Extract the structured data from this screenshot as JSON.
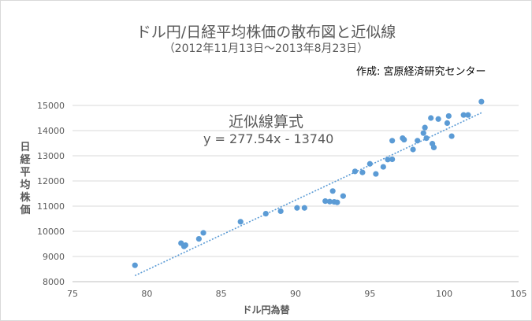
{
  "chart_data": {
    "type": "scatter",
    "title": "ドル円/日経平均株価の散布図と近似線",
    "subtitle": "（2012年11月13日〜2013年8月23日）",
    "author": "作成: 宮原経済研究センター",
    "annotation_title": "近似線算式",
    "annotation_equation": "y = 277.54x - 13740",
    "xlabel": "ドル円為替",
    "ylabel": "日経平均株価",
    "xlim": [
      75,
      105
    ],
    "ylim": [
      8000,
      15500
    ],
    "x_ticks": [
      "75",
      "80",
      "85",
      "90",
      "95",
      "100",
      "105"
    ],
    "y_ticks": [
      "8000",
      "9000",
      "10000",
      "11000",
      "12000",
      "13000",
      "14000",
      "15000"
    ],
    "grid": "horizontal",
    "trendline": {
      "slope": 277.54,
      "intercept": -13740,
      "x_range": [
        79.2,
        102.5
      ]
    },
    "marker_color": "#5b9bd5",
    "points": [
      [
        79.2,
        8650
      ],
      [
        82.3,
        9530
      ],
      [
        82.5,
        9400
      ],
      [
        82.6,
        9450
      ],
      [
        83.5,
        9700
      ],
      [
        83.8,
        9940
      ],
      [
        86.3,
        10380
      ],
      [
        88.0,
        10700
      ],
      [
        89.0,
        10800
      ],
      [
        90.1,
        10930
      ],
      [
        90.6,
        10930
      ],
      [
        92.0,
        11200
      ],
      [
        92.3,
        11180
      ],
      [
        92.5,
        11600
      ],
      [
        92.6,
        11170
      ],
      [
        92.8,
        11150
      ],
      [
        93.2,
        11400
      ],
      [
        94.0,
        12380
      ],
      [
        94.5,
        12340
      ],
      [
        95.0,
        12680
      ],
      [
        95.4,
        12280
      ],
      [
        95.9,
        12560
      ],
      [
        96.2,
        12850
      ],
      [
        96.5,
        12860
      ],
      [
        96.5,
        13600
      ],
      [
        97.2,
        13700
      ],
      [
        97.3,
        13640
      ],
      [
        97.9,
        13250
      ],
      [
        98.2,
        13600
      ],
      [
        98.6,
        13900
      ],
      [
        98.7,
        14120
      ],
      [
        98.8,
        13700
      ],
      [
        99.1,
        14500
      ],
      [
        99.2,
        13480
      ],
      [
        99.3,
        13330
      ],
      [
        99.6,
        14460
      ],
      [
        100.2,
        14300
      ],
      [
        100.3,
        14580
      ],
      [
        100.5,
        13780
      ],
      [
        101.3,
        14620
      ],
      [
        101.6,
        14620
      ],
      [
        102.5,
        15150
      ]
    ]
  }
}
